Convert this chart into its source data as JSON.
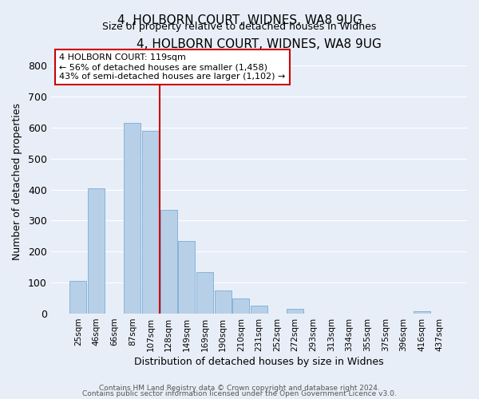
{
  "title": "4, HOLBORN COURT, WIDNES, WA8 9UG",
  "subtitle": "Size of property relative to detached houses in Widnes",
  "xlabel": "Distribution of detached houses by size in Widnes",
  "ylabel": "Number of detached properties",
  "bar_labels": [
    "25sqm",
    "46sqm",
    "66sqm",
    "87sqm",
    "107sqm",
    "128sqm",
    "149sqm",
    "169sqm",
    "190sqm",
    "210sqm",
    "231sqm",
    "252sqm",
    "272sqm",
    "293sqm",
    "313sqm",
    "334sqm",
    "355sqm",
    "375sqm",
    "396sqm",
    "416sqm",
    "437sqm"
  ],
  "bar_values": [
    105,
    405,
    0,
    615,
    590,
    335,
    235,
    135,
    75,
    50,
    25,
    0,
    15,
    0,
    0,
    0,
    0,
    0,
    0,
    8,
    0
  ],
  "bar_color": "#b8cfe8",
  "bar_edge_color": "#7aadd4",
  "vline_color": "#cc0000",
  "vline_pos": 4.5,
  "ylim": [
    0,
    850
  ],
  "yticks": [
    0,
    100,
    200,
    300,
    400,
    500,
    600,
    700,
    800
  ],
  "annotation_title": "4 HOLBORN COURT: 119sqm",
  "annotation_line1": "← 56% of detached houses are smaller (1,458)",
  "annotation_line2": "43% of semi-detached houses are larger (1,102) →",
  "annotation_box_facecolor": "#ffffff",
  "annotation_box_edgecolor": "#cc0000",
  "footer1": "Contains HM Land Registry data © Crown copyright and database right 2024.",
  "footer2": "Contains public sector information licensed under the Open Government Licence v3.0.",
  "fig_facecolor": "#e8eef8",
  "axes_facecolor": "#e8eef8"
}
